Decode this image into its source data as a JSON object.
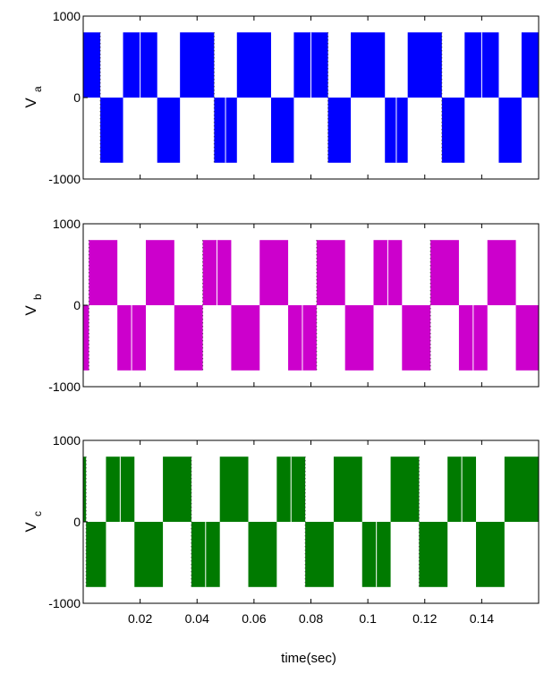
{
  "figure": {
    "xlabel": "time(sec)"
  },
  "chart_data": [
    {
      "type": "line",
      "ylabel": "V",
      "ylabel_sub": "a",
      "color": "#0000ff",
      "xlim": [
        0,
        0.16
      ],
      "ylim": [
        -1000,
        1000
      ],
      "yticks": [
        "1000",
        "0",
        "-1000"
      ],
      "xticks": [],
      "amplitude": 800,
      "segments": [
        {
          "t0": 0.0,
          "t1": 0.006,
          "v": 800
        },
        {
          "t0": 0.006,
          "t1": 0.014,
          "v": -800
        },
        {
          "t0": 0.014,
          "t1": 0.026,
          "v": 800
        },
        {
          "t0": 0.026,
          "t1": 0.034,
          "v": -800
        },
        {
          "t0": 0.034,
          "t1": 0.046,
          "v": 800
        },
        {
          "t0": 0.046,
          "t1": 0.054,
          "v": -800
        },
        {
          "t0": 0.054,
          "t1": 0.066,
          "v": 800
        },
        {
          "t0": 0.066,
          "t1": 0.074,
          "v": -800
        },
        {
          "t0": 0.074,
          "t1": 0.086,
          "v": 800
        },
        {
          "t0": 0.086,
          "t1": 0.094,
          "v": -800
        },
        {
          "t0": 0.094,
          "t1": 0.106,
          "v": 800
        },
        {
          "t0": 0.106,
          "t1": 0.114,
          "v": -800
        },
        {
          "t0": 0.114,
          "t1": 0.126,
          "v": 800
        },
        {
          "t0": 0.126,
          "t1": 0.134,
          "v": -800
        },
        {
          "t0": 0.134,
          "t1": 0.146,
          "v": 800
        },
        {
          "t0": 0.146,
          "t1": 0.154,
          "v": -800
        },
        {
          "t0": 0.154,
          "t1": 0.16,
          "v": 800
        }
      ]
    },
    {
      "type": "line",
      "ylabel": "V",
      "ylabel_sub": "b",
      "color": "#cc00cc",
      "xlim": [
        0,
        0.16
      ],
      "ylim": [
        -1000,
        1000
      ],
      "yticks": [
        "1000",
        "0",
        "-1000"
      ],
      "xticks": [],
      "amplitude": 800,
      "segments": [
        {
          "t0": 0.0,
          "t1": 0.002,
          "v": -800
        },
        {
          "t0": 0.002,
          "t1": 0.012,
          "v": 800
        },
        {
          "t0": 0.012,
          "t1": 0.022,
          "v": -800
        },
        {
          "t0": 0.022,
          "t1": 0.032,
          "v": 800
        },
        {
          "t0": 0.032,
          "t1": 0.042,
          "v": -800
        },
        {
          "t0": 0.042,
          "t1": 0.052,
          "v": 800
        },
        {
          "t0": 0.052,
          "t1": 0.062,
          "v": -800
        },
        {
          "t0": 0.062,
          "t1": 0.072,
          "v": 800
        },
        {
          "t0": 0.072,
          "t1": 0.082,
          "v": -800
        },
        {
          "t0": 0.082,
          "t1": 0.092,
          "v": 800
        },
        {
          "t0": 0.092,
          "t1": 0.102,
          "v": -800
        },
        {
          "t0": 0.102,
          "t1": 0.112,
          "v": 800
        },
        {
          "t0": 0.112,
          "t1": 0.122,
          "v": -800
        },
        {
          "t0": 0.122,
          "t1": 0.132,
          "v": 800
        },
        {
          "t0": 0.132,
          "t1": 0.142,
          "v": -800
        },
        {
          "t0": 0.142,
          "t1": 0.152,
          "v": 800
        },
        {
          "t0": 0.152,
          "t1": 0.16,
          "v": -800
        }
      ]
    },
    {
      "type": "line",
      "ylabel": "V",
      "ylabel_sub": "c",
      "color": "#007a00",
      "xlim": [
        0,
        0.16
      ],
      "ylim": [
        -1000,
        1000
      ],
      "yticks": [
        "1000",
        "0",
        "-1000"
      ],
      "xticks": [
        "0.02",
        "0.04",
        "0.06",
        "0.08",
        "0.1",
        "0.12",
        "0.14"
      ],
      "xtick_values": [
        0.02,
        0.04,
        0.06,
        0.08,
        0.1,
        0.12,
        0.14
      ],
      "amplitude": 800,
      "segments": [
        {
          "t0": 0.0,
          "t1": 0.001,
          "v": 800
        },
        {
          "t0": 0.001,
          "t1": 0.008,
          "v": -800
        },
        {
          "t0": 0.008,
          "t1": 0.018,
          "v": 800
        },
        {
          "t0": 0.018,
          "t1": 0.028,
          "v": -800
        },
        {
          "t0": 0.028,
          "t1": 0.038,
          "v": 800
        },
        {
          "t0": 0.038,
          "t1": 0.048,
          "v": -800
        },
        {
          "t0": 0.048,
          "t1": 0.058,
          "v": 800
        },
        {
          "t0": 0.058,
          "t1": 0.068,
          "v": -800
        },
        {
          "t0": 0.068,
          "t1": 0.078,
          "v": 800
        },
        {
          "t0": 0.078,
          "t1": 0.088,
          "v": -800
        },
        {
          "t0": 0.088,
          "t1": 0.098,
          "v": 800
        },
        {
          "t0": 0.098,
          "t1": 0.108,
          "v": -800
        },
        {
          "t0": 0.108,
          "t1": 0.118,
          "v": 800
        },
        {
          "t0": 0.118,
          "t1": 0.128,
          "v": -800
        },
        {
          "t0": 0.128,
          "t1": 0.138,
          "v": 800
        },
        {
          "t0": 0.138,
          "t1": 0.148,
          "v": -800
        },
        {
          "t0": 0.148,
          "t1": 0.16,
          "v": 800
        }
      ]
    }
  ]
}
